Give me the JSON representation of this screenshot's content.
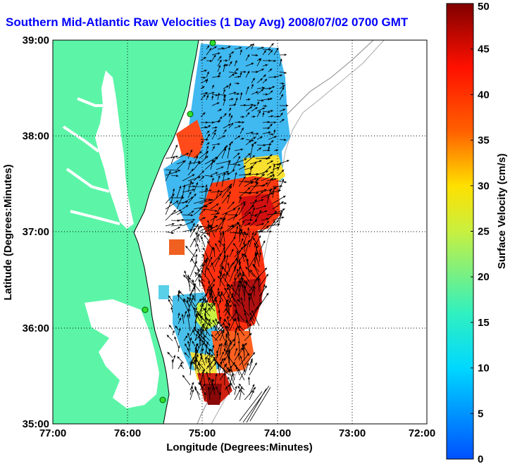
{
  "title": "Southern Mid-Atlantic Raw Velocities (1 Day Avg) 2008/07/02 0700 GMT",
  "map": {
    "xlabel": "Longitude (Degrees:Minutes)",
    "ylabel": "Latitude (Degrees:Minutes)",
    "x_ticks": [
      "77:00",
      "76:00",
      "75:00",
      "74:00",
      "73:00",
      "72:00"
    ],
    "y_ticks": [
      "39:00",
      "38:00",
      "37:00",
      "36:00",
      "35:00"
    ],
    "lon_range": [
      -77,
      -72
    ],
    "lat_range": [
      35,
      39
    ],
    "grid": true,
    "land_color": "#5cf5a8",
    "water_color": "#ffffff"
  },
  "colorbar": {
    "label": "Surface Velocity (cm/s)",
    "ticks": [
      "0",
      "5",
      "10",
      "15",
      "20",
      "25",
      "30",
      "35",
      "40",
      "45",
      "50"
    ],
    "range": [
      0,
      50
    ],
    "colors": [
      "#0040ff",
      "#00ccff",
      "#30f0c0",
      "#c8f040",
      "#ffd000",
      "#ff6000",
      "#ff1000",
      "#800000"
    ]
  },
  "stations": [
    "green-dot",
    "green-dot",
    "green-dot",
    "green-dot"
  ]
}
